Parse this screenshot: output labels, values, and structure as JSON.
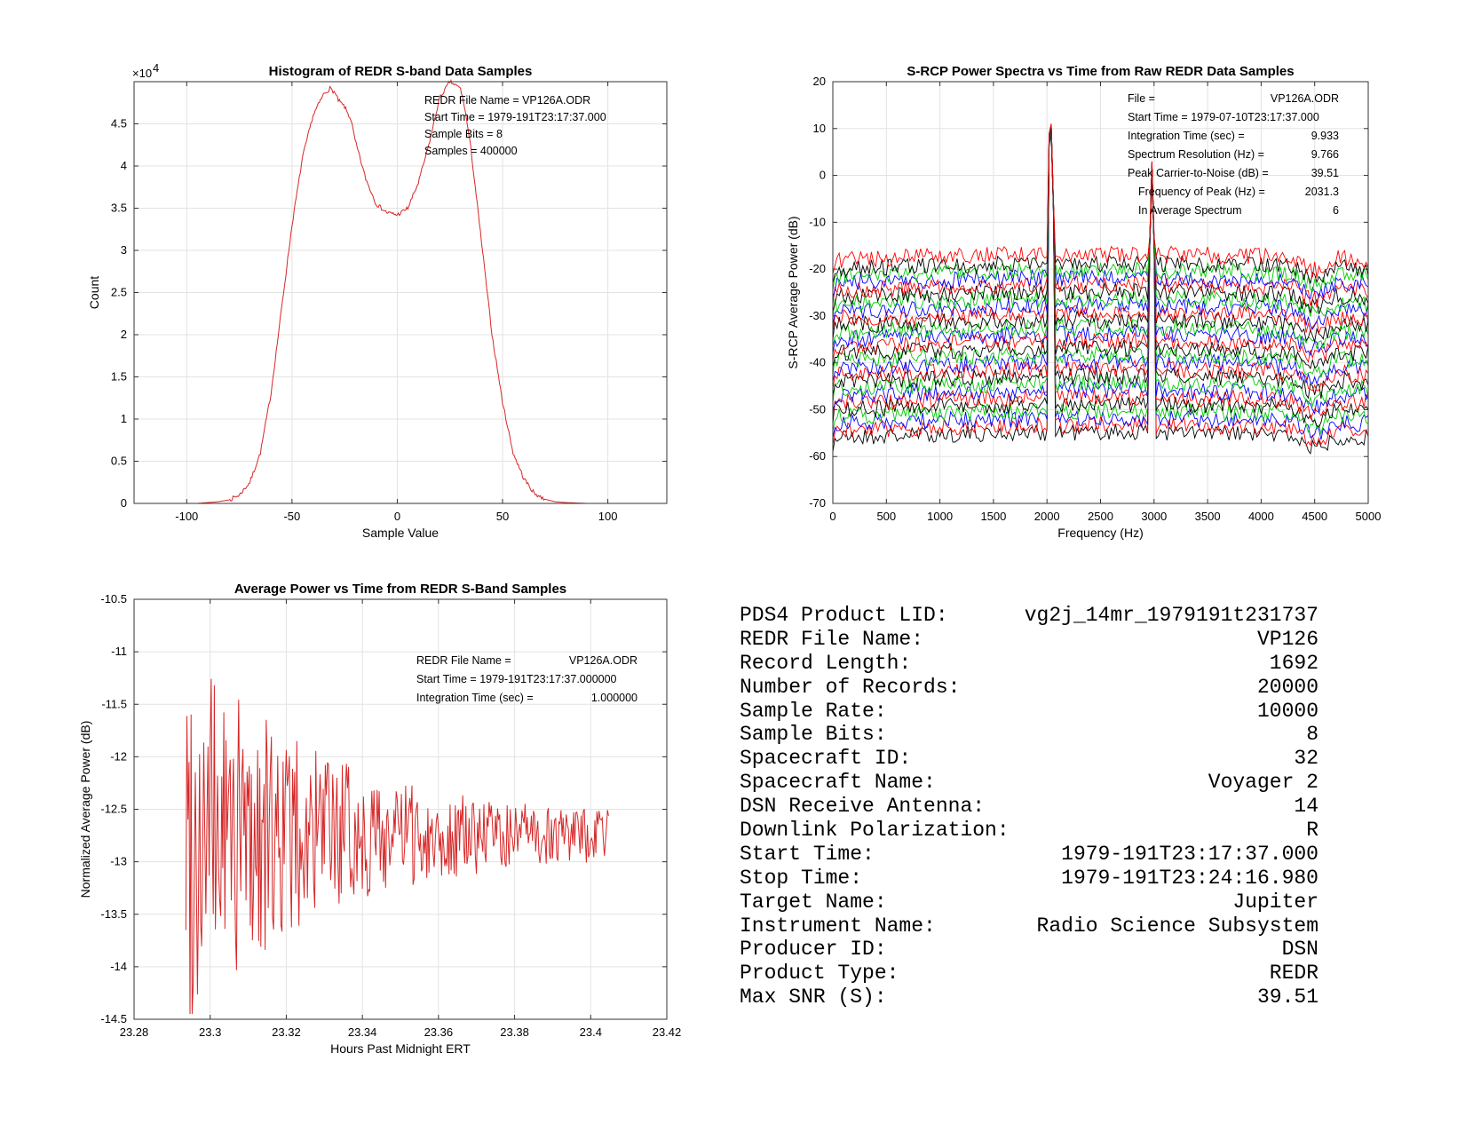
{
  "chart_data": [
    {
      "type": "line",
      "title": "Histogram of REDR S-band Data Samples",
      "xlabel": "Sample Value",
      "ylabel": "Count",
      "y_exponent_label": "×10",
      "y_exponent_power": "4",
      "xlim": [
        -125,
        128
      ],
      "ylim": [
        0,
        5.0
      ],
      "xticks": [
        -100,
        -50,
        0,
        50,
        100
      ],
      "yticks": [
        0,
        0.5,
        1,
        1.5,
        2,
        2.5,
        3,
        3.5,
        4,
        4.5
      ],
      "grid": true,
      "color": "#d62728",
      "x": [
        -125,
        -95,
        -90,
        -85,
        -80,
        -75,
        -70,
        -65,
        -60,
        -55,
        -50,
        -45,
        -40,
        -35,
        -32,
        -30,
        -28,
        -25,
        -22,
        -20,
        -15,
        -10,
        -5,
        0,
        5,
        10,
        15,
        20,
        25,
        30,
        32,
        35,
        40,
        45,
        50,
        55,
        60,
        65,
        70,
        75,
        80,
        85,
        90,
        95,
        128
      ],
      "y": [
        0,
        0,
        0.01,
        0.02,
        0.04,
        0.1,
        0.25,
        0.6,
        1.3,
        2.3,
        3.3,
        4.1,
        4.6,
        4.85,
        4.92,
        4.88,
        4.78,
        4.7,
        4.55,
        4.3,
        3.85,
        3.55,
        3.45,
        3.42,
        3.5,
        3.8,
        4.25,
        4.8,
        5.0,
        4.92,
        4.7,
        4.2,
        3.1,
        2.0,
        1.2,
        0.6,
        0.3,
        0.12,
        0.05,
        0.02,
        0.01,
        0.005,
        0,
        0,
        0
      ],
      "annotations": [
        "REDR File Name = VP126A.ODR",
        "Start Time = 1979-191T23:17:37.000",
        "Sample Bits = 8",
        "Samples = 400000"
      ]
    },
    {
      "type": "line",
      "title": "S-RCP Power Spectra vs Time from Raw REDR Data Samples",
      "xlabel": "Frequency (Hz)",
      "ylabel": "S-RCP Average Power (dB)",
      "xlim": [
        0,
        5000
      ],
      "ylim": [
        -70,
        20
      ],
      "xticks": [
        0,
        500,
        1000,
        1500,
        2000,
        2500,
        3000,
        3500,
        4000,
        4500,
        5000
      ],
      "yticks": [
        -70,
        -60,
        -50,
        -40,
        -30,
        -20,
        -10,
        0,
        10,
        20
      ],
      "grid": true,
      "series_count": 26,
      "series_base_levels": [
        -56,
        -54.5,
        -53,
        -51.5,
        -50,
        -48.5,
        -47,
        -45.5,
        -44,
        -42.5,
        -41,
        -39.5,
        -38,
        -36.5,
        -35,
        -33.5,
        -32,
        -30.5,
        -29,
        -27.5,
        -26,
        -24.5,
        -23,
        -21.5,
        -20,
        -18
      ],
      "series_colors": [
        "#000000",
        "#ff0000",
        "#0000ff",
        "#00cc00"
      ],
      "peaks": [
        {
          "frequency": 2031.3,
          "level": 18
        },
        {
          "frequency": 2980,
          "level": 3
        }
      ],
      "annotations": [
        {
          "label": "File =",
          "value": "VP126A.ODR"
        },
        {
          "label": "Start Time = 1979-07-10T23:17:37.000",
          "value": ""
        },
        {
          "label": "Integration Time (sec) =",
          "value": "9.933"
        },
        {
          "label": "Spectrum Resolution (Hz) =",
          "value": "9.766"
        },
        {
          "label": "Peak Carrier-to-Noise (dB) =",
          "value": "39.51"
        },
        {
          "label": "Frequency of Peak (Hz) =",
          "value": "2031.3"
        },
        {
          "label": "In Average Spectrum",
          "value": "6"
        }
      ]
    },
    {
      "type": "line",
      "title": "Average Power vs Time from REDR S-Band Samples",
      "xlabel": "Hours Past Midnight ERT",
      "ylabel": "Normalized Average Power (dB)",
      "xlim": [
        23.28,
        23.42
      ],
      "ylim": [
        -14.5,
        -10.5
      ],
      "xticks": [
        23.28,
        23.3,
        23.32,
        23.34,
        23.36,
        23.38,
        23.4,
        23.42
      ],
      "yticks": [
        -14.5,
        -14,
        -13.5,
        -13,
        -12.5,
        -12,
        -11.5,
        -11,
        -10.5
      ],
      "grid": true,
      "color": "#d62728",
      "x_start": 23.2936,
      "x_end": 23.4047,
      "mean_level": -12.75,
      "annotations": [
        {
          "label": "REDR File Name =",
          "value": "VP126A.ODR"
        },
        {
          "label": "Start Time = 1979-191T23:17:37.000000",
          "value": ""
        },
        {
          "label": "Integration Time (sec) =",
          "value": "1.000000"
        }
      ]
    }
  ],
  "summary": [
    {
      "label": "PDS4 Product LID:",
      "value": "vg2j_14mr_1979191t231737"
    },
    {
      "label": "REDR File Name:",
      "value": "VP126"
    },
    {
      "label": "Record Length:",
      "value": "1692"
    },
    {
      "label": "Number of Records:",
      "value": "20000"
    },
    {
      "label": "Sample Rate:",
      "value": "10000"
    },
    {
      "label": "Sample Bits:",
      "value": "8"
    },
    {
      "label": "Spacecraft ID:",
      "value": "32"
    },
    {
      "label": "Spacecraft Name:",
      "value": "Voyager 2"
    },
    {
      "label": "DSN Receive Antenna:",
      "value": "14"
    },
    {
      "label": "Downlink Polarization:",
      "value": "R"
    },
    {
      "label": "Start Time:",
      "value": "1979-191T23:17:37.000"
    },
    {
      "label": "Stop Time:",
      "value": "1979-191T23:24:16.980"
    },
    {
      "label": "Target Name:",
      "value": "Jupiter"
    },
    {
      "label": "Instrument Name:",
      "value": "Radio Science Subsystem"
    },
    {
      "label": "Producer ID:",
      "value": "DSN"
    },
    {
      "label": "Product Type:",
      "value": "REDR"
    },
    {
      "label": "Max SNR (S):",
      "value": "39.51"
    }
  ]
}
